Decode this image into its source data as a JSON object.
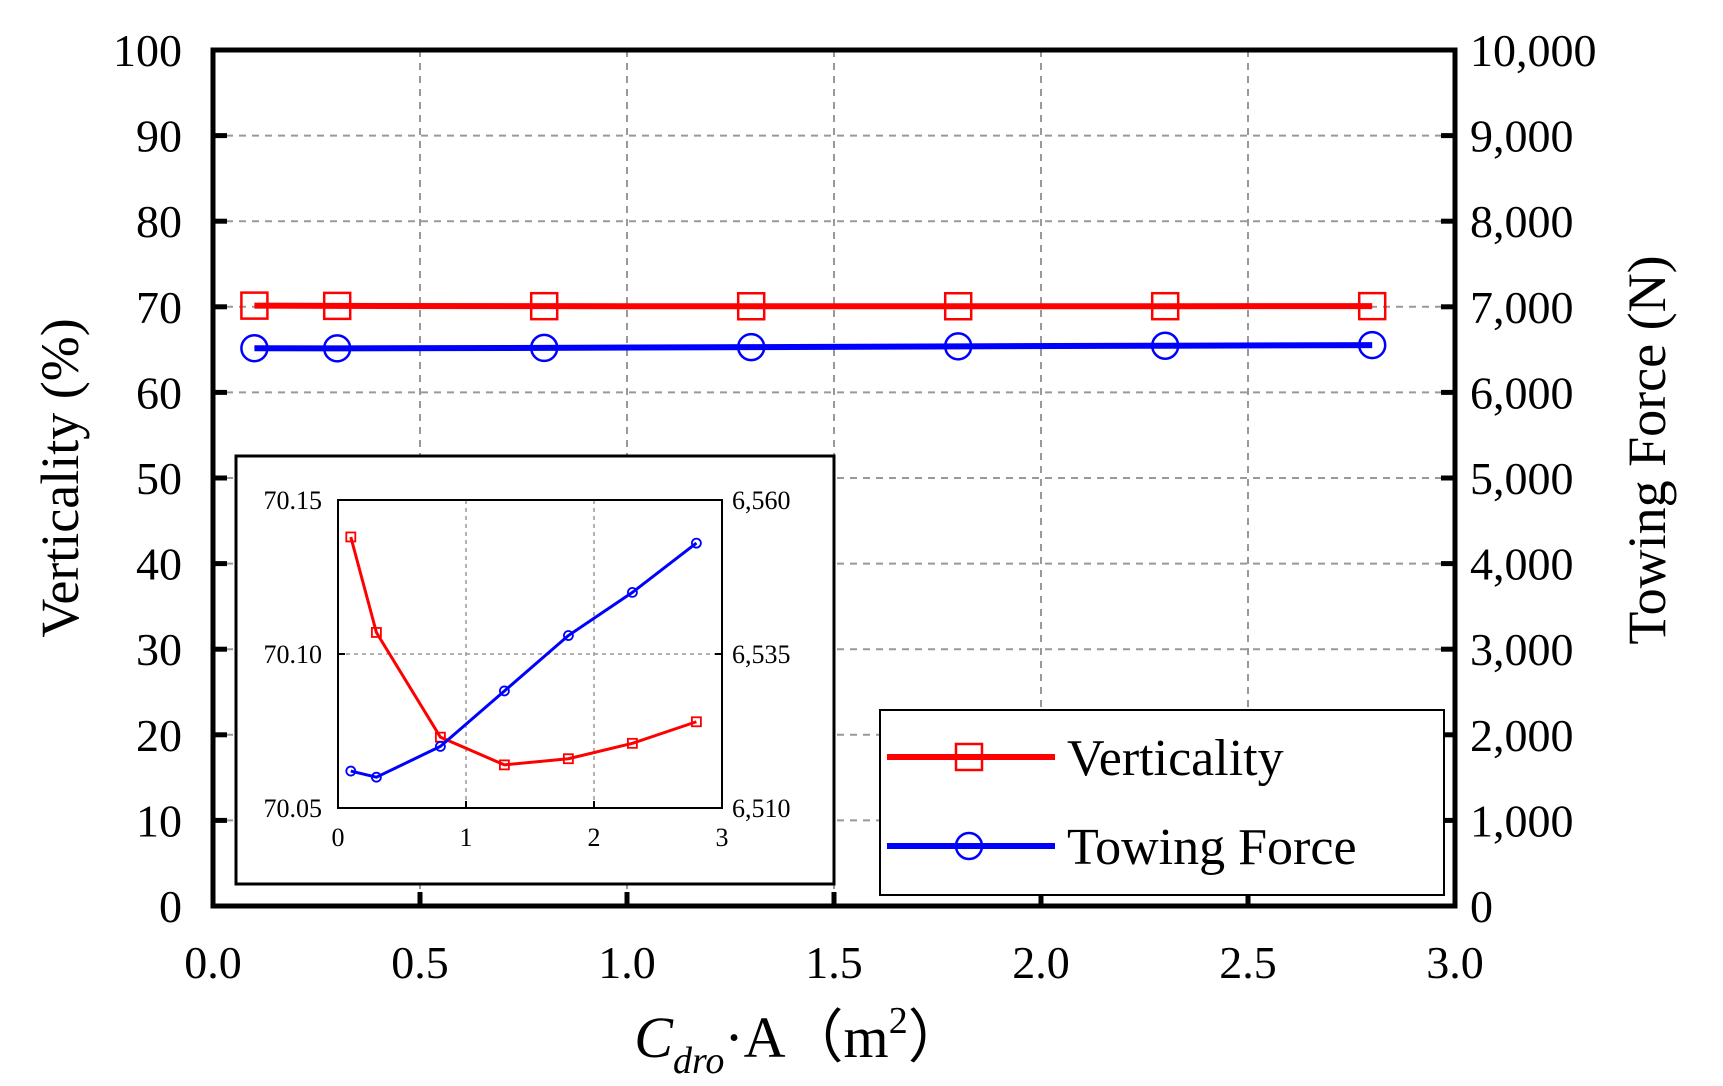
{
  "chart_data": {
    "type": "line",
    "title": "",
    "xlabel": {
      "main": "C",
      "sub": "dro",
      "rest": "·A（m",
      "sup": "2",
      "end": "）"
    },
    "ylabel_left": "Verticality (%)",
    "ylabel_right": "Towing Force (N)",
    "xlim": [
      0,
      3
    ],
    "ylim_left": [
      0,
      100
    ],
    "ylim_right": [
      0,
      10000
    ],
    "x_ticks": [
      "0.0",
      "0.5",
      "1.0",
      "1.5",
      "2.0",
      "2.5",
      "3.0"
    ],
    "y_left_ticks": [
      "0",
      "10",
      "20",
      "30",
      "40",
      "50",
      "60",
      "70",
      "80",
      "90",
      "100"
    ],
    "y_right_ticks": [
      "0",
      "1,000",
      "2,000",
      "3,000",
      "4,000",
      "5,000",
      "6,000",
      "7,000",
      "8,000",
      "9,000",
      "10,000"
    ],
    "grid": true,
    "legend_position": "bottom-right",
    "x": [
      0.1,
      0.3,
      0.8,
      1.3,
      1.8,
      2.3,
      2.8
    ],
    "series": [
      {
        "name": "Verticality",
        "axis": "left",
        "color": "#ff0000",
        "marker": "square",
        "values": [
          70.138,
          70.107,
          70.073,
          70.064,
          70.066,
          70.071,
          70.078
        ]
      },
      {
        "name": "Towing Force",
        "axis": "right",
        "color": "#0000ff",
        "marker": "circle",
        "values": [
          6516,
          6515,
          6520,
          6529,
          6538,
          6545,
          6553
        ]
      }
    ],
    "inset": {
      "xlim": [
        0,
        3
      ],
      "ylim_left": [
        70.05,
        70.15
      ],
      "ylim_right": [
        6510,
        6560
      ],
      "x_ticks": [
        "0",
        "1",
        "2",
        "3"
      ],
      "y_left_ticks": [
        "70.05",
        "70.10",
        "70.15"
      ],
      "y_right_ticks": [
        "6,510",
        "6,535",
        "6,560"
      ],
      "grid": true
    }
  }
}
